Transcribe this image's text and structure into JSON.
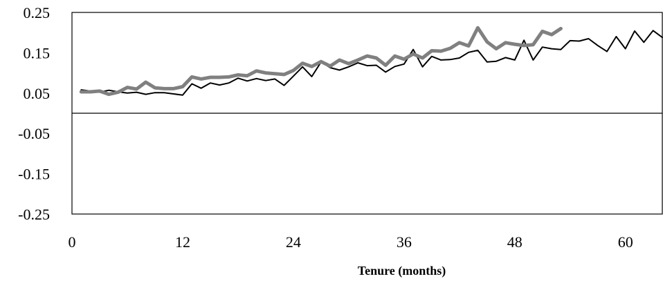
{
  "chart_data": {
    "type": "line",
    "title": "",
    "xlabel": "Tenure (months)",
    "ylabel": "",
    "xlim": [
      0,
      64
    ],
    "ylim": [
      -0.25,
      0.25
    ],
    "x_ticks": [
      0,
      12,
      24,
      36,
      48,
      60
    ],
    "y_ticks": [
      0.25,
      0.15,
      0.05,
      -0.05,
      -0.15,
      -0.25
    ],
    "x_tick_labels": [
      "0",
      "12",
      "24",
      "36",
      "48",
      "60"
    ],
    "y_tick_labels": [
      "0.25",
      "0.15",
      "0.05",
      "-0.05",
      "-0.15",
      "-0.25"
    ],
    "zero_line": true,
    "grid": false,
    "legend": "none",
    "series": [
      {
        "color": "#000000",
        "style": "thin",
        "x": [
          1,
          2,
          3,
          4,
          5,
          6,
          7,
          8,
          9,
          10,
          11,
          12,
          13,
          14,
          15,
          16,
          17,
          18,
          19,
          20,
          21,
          22,
          23,
          24,
          25,
          26,
          27,
          28,
          29,
          30,
          31,
          32,
          33,
          34,
          35,
          36,
          37,
          38,
          39,
          40,
          41,
          42,
          43,
          44,
          45,
          46,
          47,
          48,
          49,
          50,
          51,
          52,
          53,
          54,
          55,
          56,
          57,
          58,
          59,
          60,
          61,
          62,
          63,
          64
        ],
        "values": [
          0.058,
          0.055,
          0.052,
          0.057,
          0.053,
          0.05,
          0.052,
          0.047,
          0.051,
          0.051,
          0.048,
          0.045,
          0.073,
          0.062,
          0.075,
          0.07,
          0.075,
          0.087,
          0.08,
          0.086,
          0.081,
          0.085,
          0.069,
          0.092,
          0.115,
          0.091,
          0.127,
          0.113,
          0.107,
          0.115,
          0.125,
          0.118,
          0.119,
          0.102,
          0.116,
          0.122,
          0.158,
          0.115,
          0.141,
          0.132,
          0.133,
          0.137,
          0.151,
          0.156,
          0.127,
          0.129,
          0.138,
          0.132,
          0.181,
          0.132,
          0.164,
          0.16,
          0.158,
          0.18,
          0.179,
          0.185,
          0.168,
          0.153,
          0.19,
          0.16,
          0.204,
          0.176,
          0.205,
          0.188
        ]
      },
      {
        "color": "#808080",
        "style": "thick",
        "x": [
          1,
          2,
          3,
          4,
          5,
          6,
          7,
          8,
          9,
          10,
          11,
          12,
          13,
          14,
          15,
          16,
          17,
          18,
          19,
          20,
          21,
          22,
          23,
          24,
          25,
          26,
          27,
          28,
          29,
          30,
          31,
          32,
          33,
          34,
          35,
          36,
          37,
          38,
          39,
          40,
          41,
          42,
          43,
          44,
          45,
          46,
          47,
          48,
          49,
          50,
          51,
          52,
          53
        ],
        "values": [
          0.053,
          0.053,
          0.055,
          0.047,
          0.052,
          0.064,
          0.06,
          0.077,
          0.063,
          0.061,
          0.061,
          0.066,
          0.09,
          0.085,
          0.089,
          0.089,
          0.09,
          0.095,
          0.093,
          0.105,
          0.1,
          0.098,
          0.096,
          0.106,
          0.124,
          0.116,
          0.128,
          0.117,
          0.132,
          0.123,
          0.132,
          0.142,
          0.137,
          0.119,
          0.142,
          0.134,
          0.147,
          0.137,
          0.155,
          0.154,
          0.161,
          0.175,
          0.167,
          0.212,
          0.177,
          0.16,
          0.175,
          0.171,
          0.168,
          0.17,
          0.203,
          0.195,
          0.21
        ]
      }
    ]
  }
}
